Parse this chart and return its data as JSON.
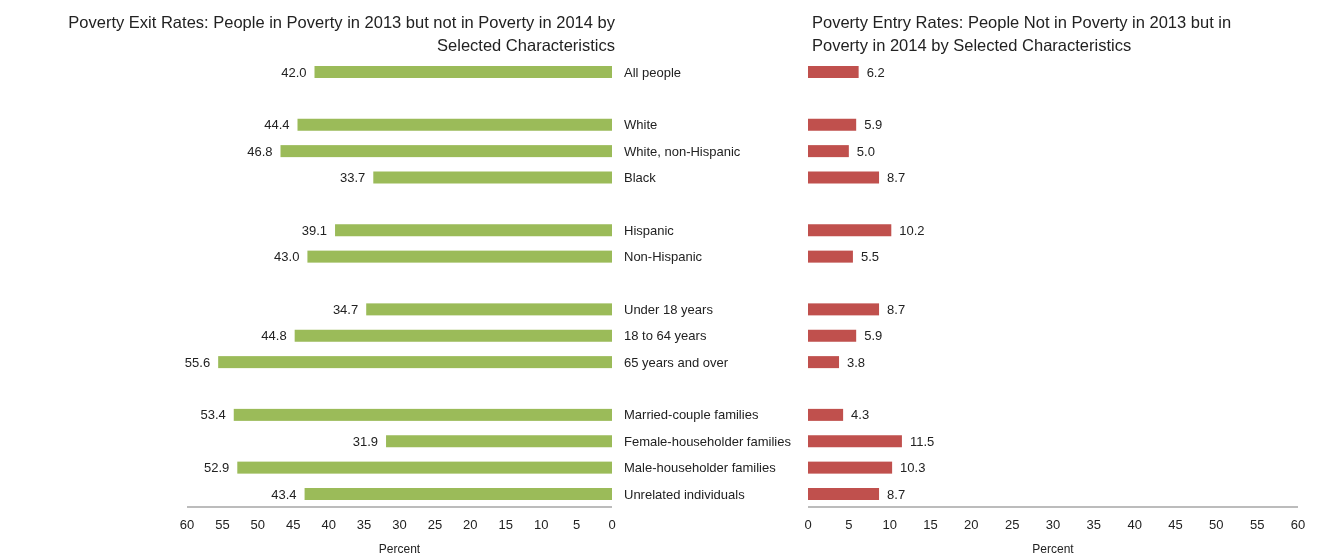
{
  "chart_data": [
    {
      "type": "bar",
      "orientation": "horizontal",
      "title": "Poverty Exit Rates: People in Poverty in 2013 but not in Poverty in 2014 by Selected Characteristics",
      "xlabel": "Percent",
      "categories": [
        "All people",
        null,
        "White",
        "White, non-Hispanic",
        "Black",
        null,
        "Hispanic",
        "Non-Hispanic",
        null,
        "Under 18 years",
        "18 to 64 years",
        "65 years and over",
        null,
        "Married-couple families",
        "Female-householder families",
        "Male-householder families",
        "Unrelated individuals"
      ],
      "values": [
        42.0,
        null,
        44.4,
        46.8,
        33.7,
        null,
        39.1,
        43.0,
        null,
        34.7,
        44.8,
        55.6,
        null,
        53.4,
        31.9,
        52.9,
        43.4
      ],
      "value_labels": [
        "42.0",
        null,
        "44.4",
        "46.8",
        "33.7",
        null,
        "39.1",
        "43.0",
        null,
        "34.7",
        "44.8",
        "55.6",
        null,
        "53.4",
        "31.9",
        "52.9",
        "43.4"
      ],
      "color": "#9bbb59",
      "xlim": [
        60,
        0
      ],
      "xticks": [
        60,
        55,
        50,
        45,
        40,
        35,
        30,
        25,
        20,
        15,
        10,
        5,
        0
      ]
    },
    {
      "type": "bar",
      "orientation": "horizontal",
      "title": "Poverty Entry Rates: People Not in Poverty in 2013 but in Poverty in 2014 by Selected Characteristics",
      "xlabel": "Percent",
      "categories": [
        null,
        null,
        null,
        null,
        null,
        null,
        null,
        null,
        null,
        null,
        null,
        null,
        null,
        null,
        null,
        null,
        null
      ],
      "values": [
        6.2,
        null,
        5.9,
        5.0,
        8.7,
        null,
        10.2,
        5.5,
        null,
        8.7,
        5.9,
        3.8,
        null,
        4.3,
        11.5,
        10.3,
        8.7
      ],
      "value_labels": [
        "6.2",
        null,
        "5.9",
        "5.0",
        "8.7",
        null,
        "10.2",
        "5.5",
        null,
        "8.7",
        "5.9",
        "3.8",
        null,
        "4.3",
        "11.5",
        "10.3",
        "8.7"
      ],
      "color": "#c0504d",
      "xlim": [
        0,
        60
      ],
      "xticks": [
        0,
        5,
        10,
        15,
        20,
        25,
        30,
        35,
        40,
        45,
        50,
        55,
        60
      ],
      "tick_labels": "x"
    }
  ]
}
